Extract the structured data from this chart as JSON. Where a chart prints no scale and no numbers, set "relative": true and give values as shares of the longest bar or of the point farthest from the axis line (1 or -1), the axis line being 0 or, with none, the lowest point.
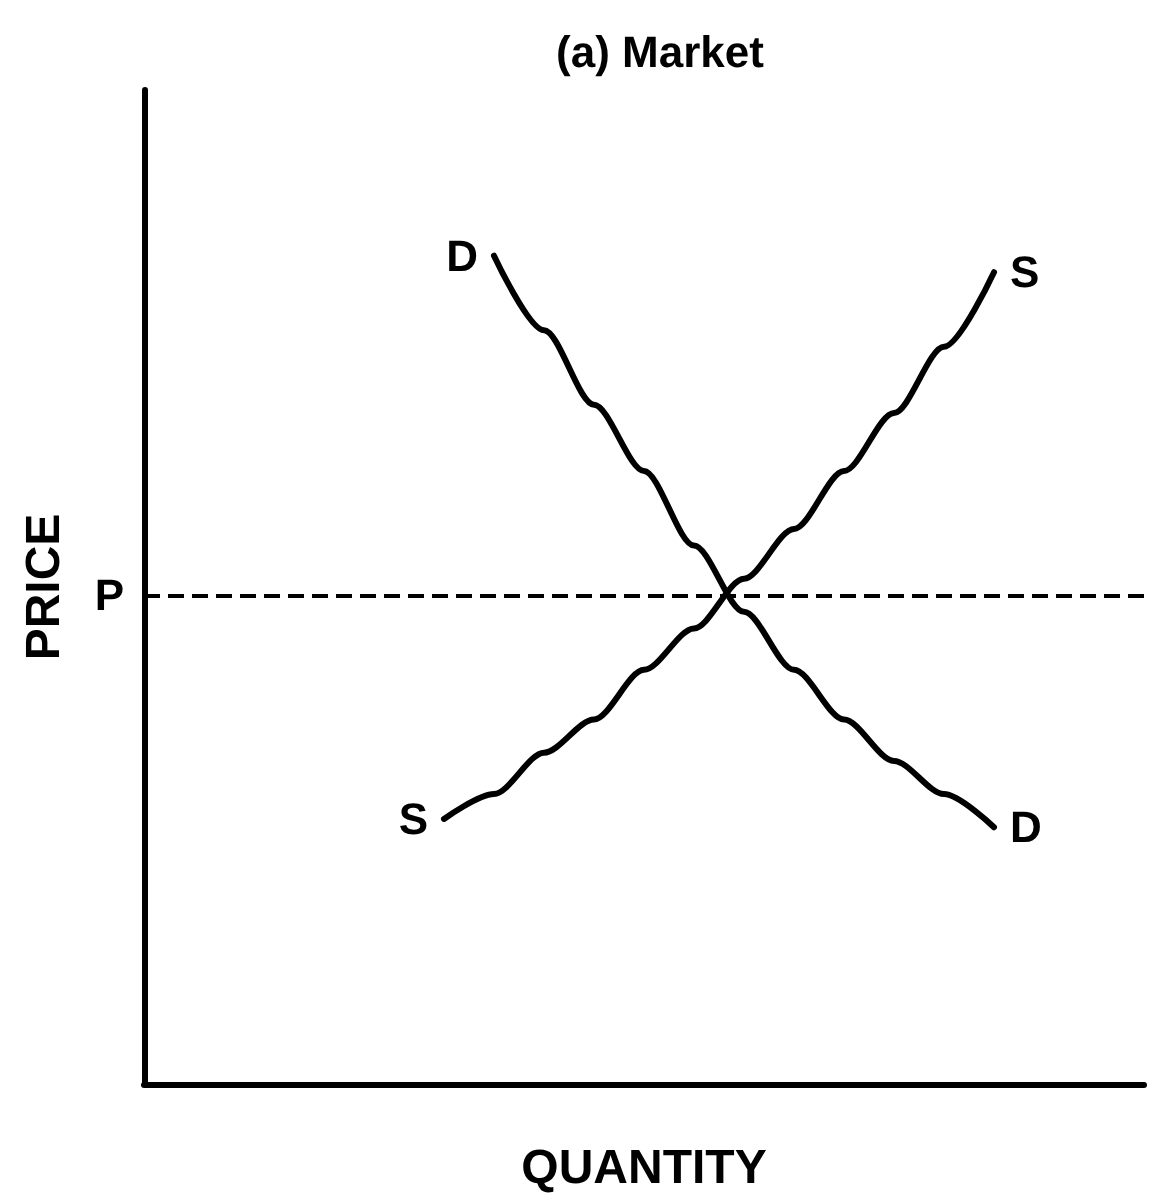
{
  "chart_data": {
    "type": "line",
    "title": "(a) Market",
    "xlabel": "QUANTITY",
    "ylabel": "PRICE",
    "relative": true,
    "categories": [
      null,
      null,
      null,
      null,
      null,
      null,
      null,
      null,
      null,
      null,
      null,
      null,
      null,
      null,
      null,
      null,
      null,
      null,
      null,
      null,
      null
    ],
    "series": [
      {
        "name": "D",
        "color": "#000000",
        "values": [
          null,
          null,
          null,
          null,
          null,
          null,
          null,
          1.0,
          0.91,
          0.82,
          0.74,
          0.65,
          0.57,
          0.5,
          0.44,
          0.39,
          0.35,
          0.31,
          null,
          null,
          null
        ]
      },
      {
        "name": "S",
        "color": "#000000",
        "values": [
          null,
          null,
          null,
          null,
          null,
          null,
          0.32,
          0.35,
          0.4,
          0.44,
          0.5,
          0.55,
          0.61,
          0.67,
          0.74,
          0.81,
          0.89,
          0.98,
          null,
          null,
          null
        ]
      }
    ],
    "ref_lines": [
      {
        "axis": "y",
        "value": 0.59,
        "label": "P",
        "line_style": "dashed",
        "color": "#000000"
      }
    ],
    "legend": false,
    "grid": false,
    "marker": "none",
    "line_style": "solid"
  }
}
